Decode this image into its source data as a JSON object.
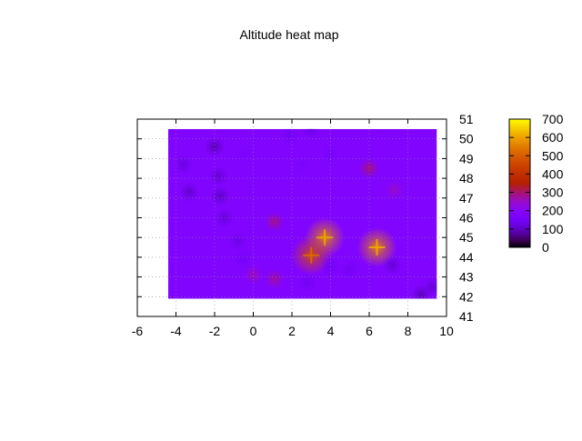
{
  "chart_data": {
    "type": "heatmap",
    "title": "Altitude heat map",
    "xlabel": "",
    "ylabel": "",
    "xlim": [
      -6,
      10
    ],
    "ylim": [
      41,
      51
    ],
    "x_ticks": [
      -6,
      -4,
      -2,
      0,
      2,
      4,
      6,
      8,
      10
    ],
    "y_ticks": [
      41,
      42,
      43,
      44,
      45,
      46,
      47,
      48,
      49,
      50,
      51
    ],
    "grid": true,
    "y_axis_side": "right",
    "data_extent": {
      "x": [
        -4.4,
        9.5
      ],
      "y": [
        41.9,
        50.5
      ]
    },
    "background_value": 180,
    "colorbar": {
      "min": 0,
      "max": 700,
      "ticks": [
        0,
        100,
        200,
        300,
        400,
        500,
        600,
        700
      ],
      "palette": "gnuplot (black-purple-red-yellow)",
      "placement": "right"
    },
    "points": [
      {
        "x": 3.7,
        "y": 45.0,
        "value": 560
      },
      {
        "x": 6.4,
        "y": 44.5,
        "value": 560
      },
      {
        "x": 3.0,
        "y": 44.1,
        "value": 470
      },
      {
        "x": 6.0,
        "y": 48.5,
        "value": 300
      },
      {
        "x": 1.1,
        "y": 45.8,
        "value": 290
      },
      {
        "x": 1.1,
        "y": 42.9,
        "value": 280
      },
      {
        "x": 0.0,
        "y": 43.1,
        "value": 260
      },
      {
        "x": 7.3,
        "y": 47.4,
        "value": 250
      },
      {
        "x": -2.0,
        "y": 49.6,
        "value": 90
      },
      {
        "x": -3.6,
        "y": 48.7,
        "value": 120
      },
      {
        "x": -1.8,
        "y": 48.1,
        "value": 110
      },
      {
        "x": -3.3,
        "y": 47.3,
        "value": 105
      },
      {
        "x": -1.7,
        "y": 47.1,
        "value": 100
      },
      {
        "x": -1.5,
        "y": 46.0,
        "value": 115
      },
      {
        "x": -0.8,
        "y": 44.8,
        "value": 130
      },
      {
        "x": -0.5,
        "y": 43.9,
        "value": 145
      },
      {
        "x": 2.8,
        "y": 42.7,
        "value": 140
      },
      {
        "x": 5.0,
        "y": 43.4,
        "value": 140
      },
      {
        "x": 7.2,
        "y": 43.6,
        "value": 110
      },
      {
        "x": 8.7,
        "y": 42.1,
        "value": 90
      },
      {
        "x": 9.3,
        "y": 42.5,
        "value": 110
      },
      {
        "x": 3.0,
        "y": 50.5,
        "value": 120
      },
      {
        "x": -0.5,
        "y": 49.2,
        "value": 160
      },
      {
        "x": 4.0,
        "y": 49.2,
        "value": 150
      },
      {
        "x": 2.5,
        "y": 48.7,
        "value": 160
      },
      {
        "x": 4.0,
        "y": 43.5,
        "value": 140
      },
      {
        "x": 1.9,
        "y": 50.2,
        "value": 140
      }
    ]
  }
}
